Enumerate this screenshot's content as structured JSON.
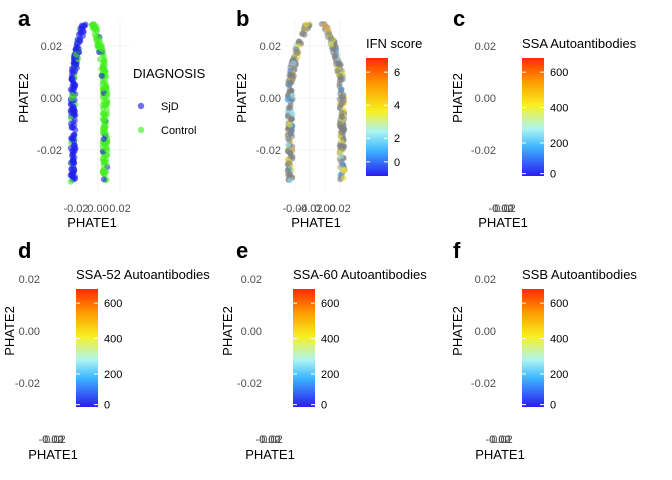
{
  "chart_data": [
    {
      "panel": "a",
      "type": "scatter",
      "xlabel": "PHATE1",
      "ylabel": "PHATE2",
      "x_ticks": [
        "-0.02",
        "0.00",
        "0.02"
      ],
      "y_ticks": [
        "0.02",
        "0.00",
        "-0.02"
      ],
      "legend_title": "DIAGNOSIS",
      "legend": [
        {
          "label": "SjD",
          "color": "#2222ee"
        },
        {
          "label": "Control",
          "color": "#44ee22"
        }
      ]
    },
    {
      "panel": "b",
      "type": "scatter",
      "xlabel": "PHATE1",
      "ylabel": "PHATE2",
      "x_ticks": [
        "-0.04",
        "-0.02",
        "0.00",
        "0.02"
      ],
      "y_ticks": [
        "0.02",
        "0.00",
        "-0.02"
      ],
      "legend_title": "IFN score",
      "colorbar_ticks": [
        "6",
        "4",
        "2",
        "0"
      ],
      "na_color": "#808080"
    },
    {
      "panel": "c",
      "type": "scatter",
      "xlabel": "PHATE1",
      "ylabel": "PHATE2",
      "x_ticks": [
        "-0.02",
        "0.00",
        "0.02"
      ],
      "y_ticks": [
        "0.02",
        "0.00",
        "-0.02"
      ],
      "legend_title": "SSA Autoantibodies",
      "colorbar_ticks": [
        "600",
        "400",
        "200",
        "0"
      ]
    },
    {
      "panel": "d",
      "type": "scatter",
      "xlabel": "PHATE1",
      "ylabel": "PHATE2",
      "x_ticks": [
        "-0.02",
        "0.00",
        "0.02"
      ],
      "y_ticks": [
        "0.02",
        "0.00",
        "-0.02"
      ],
      "legend_title": "SSA-52 Autoantibodies",
      "colorbar_ticks": [
        "600",
        "400",
        "200",
        "0"
      ]
    },
    {
      "panel": "e",
      "type": "scatter",
      "xlabel": "PHATE1",
      "ylabel": "PHATE2",
      "x_ticks": [
        "-0.02",
        "0.00",
        "0.02"
      ],
      "y_ticks": [
        "0.02",
        "0.00",
        "-0.02"
      ],
      "legend_title": "SSA-60 Autoantibodies",
      "colorbar_ticks": [
        "600",
        "400",
        "200",
        "0"
      ]
    },
    {
      "panel": "f",
      "type": "scatter",
      "xlabel": "PHATE1",
      "ylabel": "PHATE2",
      "x_ticks": [
        "-0.02",
        "0.00",
        "0.02"
      ],
      "y_ticks": [
        "0.02",
        "0.00",
        "-0.02"
      ],
      "legend_title": "SSB Autoantibodies",
      "colorbar_ticks": [
        "600",
        "400",
        "200",
        "0"
      ]
    }
  ]
}
